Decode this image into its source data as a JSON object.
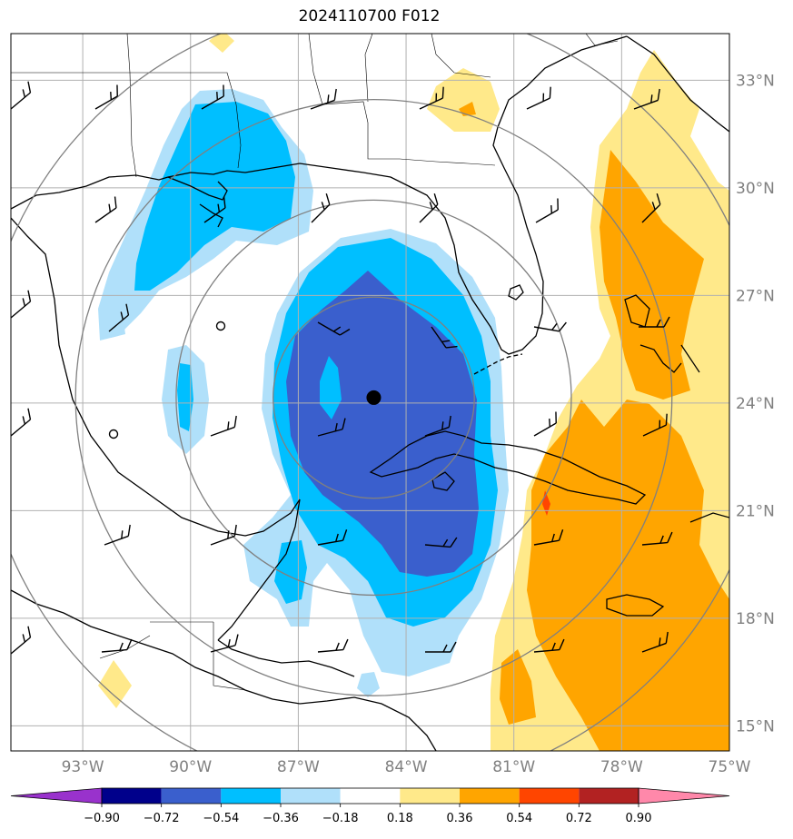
{
  "title": "2024110700 F012",
  "map": {
    "extent": {
      "lon_min": -95.0,
      "lon_max": -75.0,
      "lat_min": 14.3,
      "lat_max": 34.3
    },
    "lat_ticks": [
      {
        "lat": 33,
        "label": "33°N"
      },
      {
        "lat": 30,
        "label": "30°N"
      },
      {
        "lat": 27,
        "label": "27°N"
      },
      {
        "lat": 24,
        "label": "24°N"
      },
      {
        "lat": 21,
        "label": "21°N"
      },
      {
        "lat": 18,
        "label": "18°N"
      },
      {
        "lat": 15,
        "label": "15°N"
      }
    ],
    "lon_ticks": [
      {
        "lon": -93,
        "label": "93°W"
      },
      {
        "lon": -90,
        "label": "90°W"
      },
      {
        "lon": -87,
        "label": "87°W"
      },
      {
        "lon": -84,
        "label": "84°W"
      },
      {
        "lon": -81,
        "label": "81°W"
      },
      {
        "lon": -78,
        "label": "78°W"
      },
      {
        "lon": -75,
        "label": "75°W"
      }
    ],
    "storm_center": {
      "lon": -84.9,
      "lat": 24.15
    },
    "range_rings_deg": [
      2.8,
      5.5,
      8.3,
      11.0
    ]
  },
  "colorbar": {
    "colors": [
      "#9932cc",
      "#00008b",
      "#3a5fcd",
      "#00bfff",
      "#b0e0fa",
      "#ffffff",
      "#ffe98a",
      "#ffa500",
      "#ff4500",
      "#b22222",
      "#ff88aa"
    ],
    "ticks": [
      "−0.90",
      "−0.72",
      "−0.54",
      "−0.36",
      "−0.18",
      "0.18",
      "0.36",
      "0.54",
      "0.72",
      "0.90"
    ]
  },
  "colors": {
    "light_blue": "#b0e0fa",
    "cyan": "#00bfff",
    "royal_blue": "#3a5fcd",
    "light_yellow": "#ffe98a",
    "orange": "#ffa500",
    "red_orange": "#ff4500",
    "grid": "#b0b0b0",
    "rings": "#808080"
  }
}
